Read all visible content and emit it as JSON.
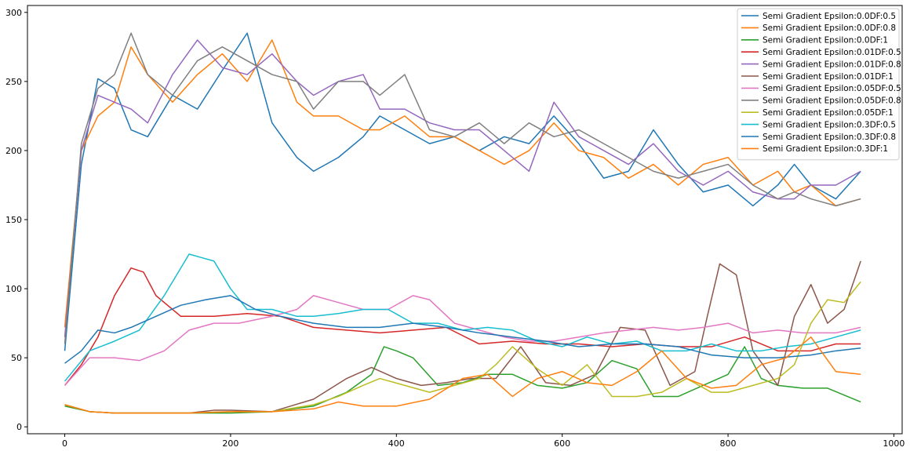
{
  "chart_data": {
    "type": "line",
    "title": "",
    "xlabel": "",
    "ylabel": "",
    "xlim": [
      -45,
      1010
    ],
    "ylim": [
      -5,
      305
    ],
    "xticks": [
      0,
      200,
      400,
      600,
      800,
      1000
    ],
    "yticks": [
      0,
      50,
      100,
      150,
      200,
      250,
      300
    ],
    "grid": false,
    "legend_position": "top-right",
    "series": [
      {
        "name": "Semi Gradient Epsilon:0.0DF:0.5",
        "color": "#1f77b4",
        "x": [
          0,
          20,
          40,
          60,
          80,
          100,
          130,
          160,
          190,
          220,
          250,
          280,
          300,
          330,
          360,
          380,
          410,
          440,
          470,
          500,
          530,
          560,
          590,
          620,
          650,
          680,
          710,
          740,
          770,
          800,
          830,
          860,
          880,
          900,
          930,
          960
        ],
        "values": [
          55,
          190,
          252,
          245,
          215,
          210,
          240,
          230,
          258,
          285,
          220,
          195,
          185,
          195,
          210,
          225,
          215,
          205,
          210,
          200,
          210,
          205,
          225,
          205,
          180,
          185,
          215,
          190,
          170,
          175,
          160,
          175,
          190,
          175,
          165,
          185
        ]
      },
      {
        "name": "Semi Gradient Epsilon:0.0DF:0.8",
        "color": "#ff7f0e",
        "x": [
          0,
          20,
          40,
          60,
          80,
          100,
          130,
          160,
          190,
          220,
          250,
          280,
          300,
          330,
          360,
          380,
          410,
          440,
          470,
          500,
          530,
          560,
          590,
          620,
          650,
          680,
          710,
          740,
          770,
          800,
          830,
          860,
          880,
          900,
          930,
          960
        ],
        "values": [
          72,
          200,
          225,
          235,
          275,
          255,
          235,
          255,
          270,
          250,
          280,
          235,
          225,
          225,
          215,
          215,
          225,
          210,
          210,
          200,
          190,
          200,
          220,
          200,
          195,
          180,
          190,
          175,
          190,
          195,
          175,
          185,
          170,
          175,
          160,
          165
        ]
      },
      {
        "name": "Semi Gradient Epsilon:0.0DF:1",
        "color": "#2ca02c",
        "x": [
          0,
          30,
          60,
          100,
          150,
          200,
          250,
          300,
          340,
          370,
          385,
          400,
          420,
          450,
          480,
          510,
          540,
          570,
          600,
          630,
          660,
          690,
          710,
          740,
          770,
          800,
          820,
          840,
          860,
          890,
          920,
          960
        ],
        "values": [
          15,
          11,
          10,
          10,
          10,
          10,
          11,
          15,
          25,
          38,
          58,
          55,
          50,
          30,
          32,
          38,
          38,
          30,
          28,
          32,
          48,
          42,
          22,
          22,
          30,
          38,
          58,
          35,
          30,
          28,
          28,
          18
        ]
      },
      {
        "name": "Semi Gradient Epsilon:0.01DF:0.5",
        "color": "#d62728",
        "x": [
          0,
          20,
          40,
          60,
          80,
          95,
          110,
          140,
          180,
          220,
          260,
          300,
          340,
          380,
          420,
          460,
          500,
          540,
          580,
          620,
          660,
          700,
          740,
          780,
          820,
          860,
          900,
          930,
          960
        ],
        "values": [
          30,
          45,
          65,
          95,
          115,
          112,
          95,
          80,
          80,
          82,
          80,
          72,
          70,
          68,
          70,
          72,
          60,
          62,
          60,
          60,
          58,
          60,
          58,
          58,
          65,
          55,
          55,
          60,
          60
        ]
      },
      {
        "name": "Semi Gradient Epsilon:0.01DF:0.8",
        "color": "#9467bd",
        "x": [
          0,
          20,
          40,
          60,
          80,
          100,
          130,
          160,
          190,
          220,
          250,
          280,
          300,
          330,
          360,
          380,
          410,
          440,
          470,
          500,
          530,
          560,
          590,
          620,
          650,
          680,
          710,
          740,
          770,
          800,
          830,
          860,
          880,
          900,
          930,
          960
        ],
        "values": [
          65,
          200,
          240,
          235,
          230,
          220,
          255,
          280,
          260,
          255,
          270,
          250,
          240,
          250,
          255,
          230,
          230,
          220,
          215,
          215,
          200,
          185,
          235,
          210,
          200,
          190,
          205,
          185,
          175,
          185,
          170,
          165,
          165,
          175,
          175,
          185
        ]
      },
      {
        "name": "Semi Gradient Epsilon:0.01DF:1",
        "color": "#8c564b",
        "x": [
          0,
          30,
          60,
          100,
          150,
          180,
          200,
          250,
          300,
          340,
          370,
          400,
          430,
          460,
          490,
          520,
          550,
          580,
          610,
          640,
          670,
          700,
          730,
          760,
          775,
          790,
          810,
          830,
          860,
          880,
          900,
          920,
          940,
          960
        ],
        "values": [
          16,
          11,
          10,
          10,
          10,
          12,
          12,
          11,
          20,
          35,
          43,
          35,
          30,
          32,
          35,
          35,
          58,
          32,
          30,
          38,
          72,
          70,
          30,
          40,
          80,
          118,
          110,
          55,
          30,
          80,
          103,
          75,
          85,
          120
        ]
      },
      {
        "name": "Semi Gradient Epsilon:0.05DF:0.5",
        "color": "#e377c2",
        "x": [
          0,
          30,
          60,
          90,
          120,
          150,
          180,
          210,
          250,
          280,
          300,
          330,
          360,
          390,
          420,
          440,
          470,
          500,
          530,
          560,
          590,
          620,
          650,
          680,
          710,
          740,
          770,
          800,
          830,
          860,
          890,
          930,
          960
        ],
        "values": [
          30,
          50,
          50,
          48,
          55,
          70,
          75,
          75,
          80,
          85,
          95,
          90,
          85,
          85,
          95,
          92,
          75,
          70,
          65,
          62,
          62,
          65,
          68,
          70,
          72,
          70,
          72,
          75,
          68,
          70,
          68,
          68,
          72
        ]
      },
      {
        "name": "Semi Gradient Epsilon:0.05DF:0.8",
        "color": "#7f7f7f",
        "x": [
          0,
          20,
          40,
          60,
          80,
          100,
          130,
          160,
          190,
          220,
          250,
          280,
          300,
          330,
          360,
          380,
          410,
          440,
          470,
          500,
          530,
          560,
          590,
          620,
          650,
          680,
          710,
          740,
          770,
          800,
          830,
          860,
          880,
          900,
          930,
          960
        ],
        "values": [
          60,
          205,
          245,
          255,
          285,
          255,
          240,
          265,
          275,
          265,
          255,
          250,
          230,
          250,
          250,
          240,
          255,
          215,
          210,
          220,
          205,
          220,
          210,
          215,
          205,
          195,
          185,
          180,
          185,
          190,
          175,
          165,
          170,
          165,
          160,
          165
        ]
      },
      {
        "name": "Semi Gradient Epsilon:0.05DF:1",
        "color": "#bcbd22",
        "x": [
          0,
          30,
          60,
          100,
          150,
          200,
          250,
          300,
          330,
          360,
          380,
          410,
          440,
          470,
          500,
          520,
          540,
          570,
          600,
          630,
          660,
          690,
          720,
          750,
          780,
          800,
          830,
          860,
          880,
          900,
          920,
          940,
          960
        ],
        "values": [
          16,
          11,
          10,
          10,
          10,
          11,
          11,
          16,
          22,
          30,
          35,
          30,
          25,
          30,
          35,
          45,
          58,
          42,
          30,
          45,
          22,
          22,
          25,
          35,
          25,
          25,
          30,
          35,
          45,
          75,
          92,
          90,
          105
        ]
      },
      {
        "name": "Semi Gradient Epsilon:0.3DF:0.5",
        "color": "#17becf",
        "x": [
          0,
          30,
          60,
          90,
          120,
          150,
          180,
          200,
          220,
          250,
          280,
          300,
          330,
          360,
          390,
          420,
          450,
          480,
          510,
          540,
          570,
          600,
          630,
          660,
          690,
          720,
          750,
          780,
          810,
          840,
          870,
          900,
          930,
          960
        ],
        "values": [
          33,
          55,
          62,
          70,
          95,
          125,
          120,
          100,
          85,
          85,
          80,
          80,
          82,
          85,
          85,
          75,
          75,
          70,
          72,
          70,
          62,
          58,
          65,
          60,
          62,
          55,
          55,
          60,
          55,
          55,
          58,
          60,
          65,
          70
        ]
      },
      {
        "name": "Semi Gradient Epsilon:0.3DF:0.8",
        "color": "#1f77b4",
        "x": [
          0,
          20,
          40,
          60,
          80,
          110,
          140,
          170,
          200,
          230,
          260,
          300,
          340,
          380,
          420,
          460,
          500,
          540,
          580,
          620,
          660,
          700,
          740,
          780,
          820,
          860,
          900,
          930,
          960
        ],
        "values": [
          46,
          55,
          70,
          68,
          72,
          80,
          88,
          92,
          95,
          85,
          80,
          75,
          72,
          72,
          75,
          72,
          68,
          65,
          62,
          58,
          60,
          60,
          58,
          52,
          50,
          50,
          52,
          55,
          57
        ]
      },
      {
        "name": "Semi Gradient Epsilon:0.3DF:1",
        "color": "#ff7f0e",
        "x": [
          0,
          30,
          60,
          100,
          150,
          200,
          250,
          300,
          330,
          360,
          400,
          440,
          480,
          510,
          540,
          570,
          600,
          630,
          660,
          690,
          720,
          750,
          780,
          810,
          840,
          870,
          900,
          930,
          960
        ],
        "values": [
          16,
          11,
          10,
          10,
          10,
          11,
          11,
          13,
          18,
          15,
          15,
          20,
          35,
          38,
          22,
          35,
          40,
          32,
          30,
          40,
          55,
          35,
          28,
          30,
          45,
          50,
          65,
          40,
          38
        ]
      }
    ]
  }
}
